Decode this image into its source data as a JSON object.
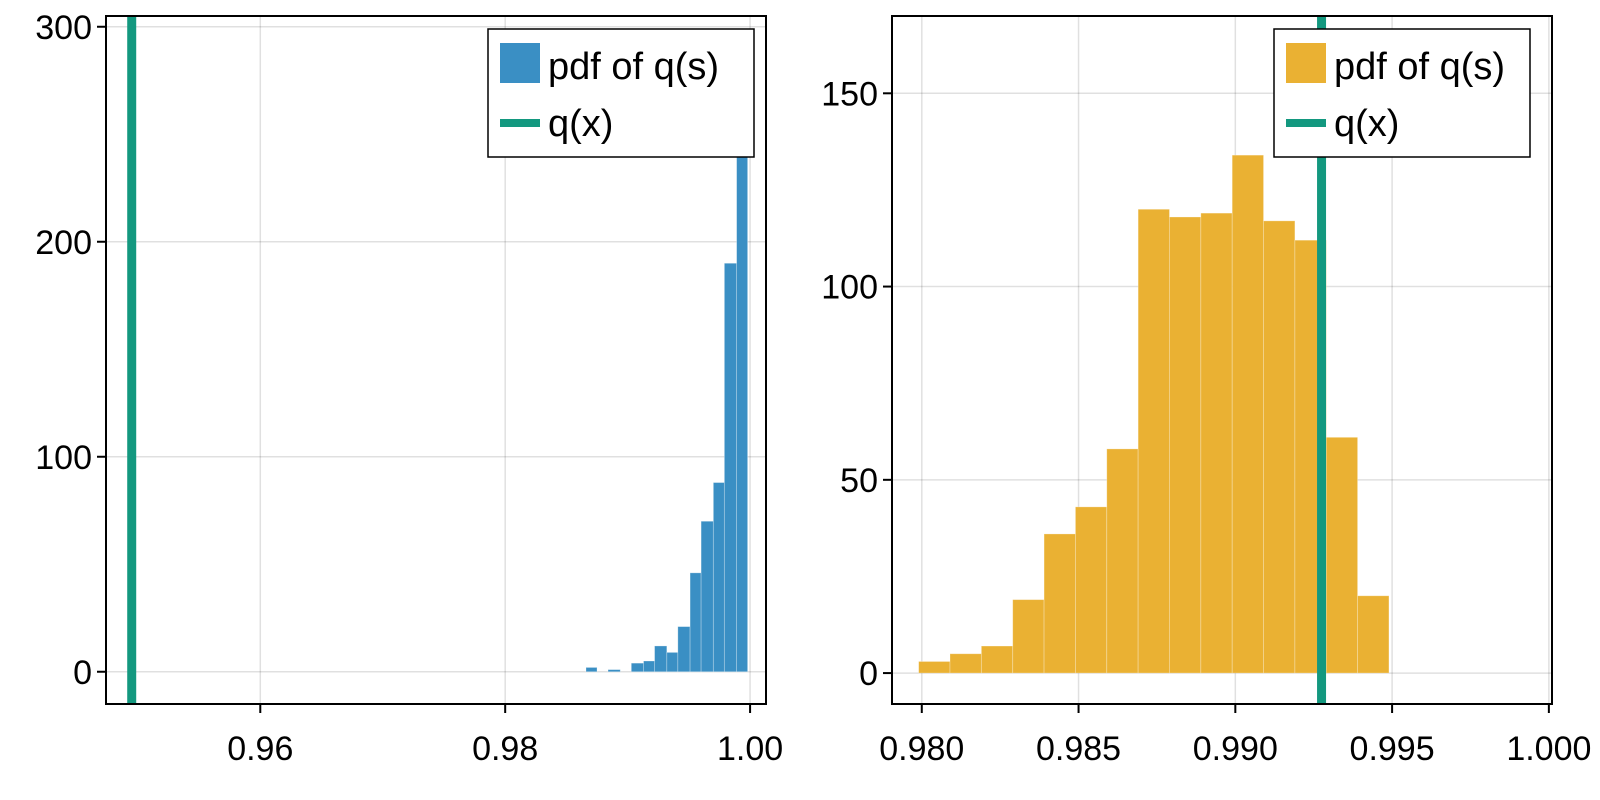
{
  "chart_data": [
    {
      "type": "bar",
      "title": "",
      "xlabel": "",
      "ylabel": "",
      "xlim": [
        0.9474,
        1.0013
      ],
      "ylim": [
        -15,
        305
      ],
      "xticks": [
        0.96,
        0.98,
        1.0
      ],
      "xtick_labels": [
        "0.96",
        "0.98",
        "1.00"
      ],
      "yticks": [
        0,
        100,
        200,
        300
      ],
      "ytick_labels": [
        "0",
        "100",
        "200",
        "300"
      ],
      "grid": true,
      "legend_position": "top-right",
      "bar_color": "#3a8fc4",
      "vline_color": "#13987f",
      "vline_x": 0.9495,
      "series": [
        {
          "name": "pdf of q(s)",
          "kind": "histogram",
          "bins": [
            {
              "x0": 0.9866,
              "x1": 0.9875,
              "y": 2
            },
            {
              "x0": 0.9884,
              "x1": 0.9894,
              "y": 1
            },
            {
              "x0": 0.9903,
              "x1": 0.9913,
              "y": 4
            },
            {
              "x0": 0.9913,
              "x1": 0.9922,
              "y": 5
            },
            {
              "x0": 0.9922,
              "x1": 0.9932,
              "y": 12
            },
            {
              "x0": 0.9932,
              "x1": 0.9941,
              "y": 9
            },
            {
              "x0": 0.9941,
              "x1": 0.9951,
              "y": 21
            },
            {
              "x0": 0.9951,
              "x1": 0.996,
              "y": 46
            },
            {
              "x0": 0.996,
              "x1": 0.997,
              "y": 70
            },
            {
              "x0": 0.997,
              "x1": 0.9979,
              "y": 88
            },
            {
              "x0": 0.9979,
              "x1": 0.9989,
              "y": 190
            },
            {
              "x0": 0.9989,
              "x1": 0.9998,
              "y": 240
            }
          ]
        },
        {
          "name": "q(x)",
          "kind": "vline",
          "x": 0.9495
        }
      ]
    },
    {
      "type": "bar",
      "title": "",
      "xlabel": "",
      "ylabel": "",
      "xlim": [
        0.97905,
        1.0001
      ],
      "ylim": [
        -8,
        170
      ],
      "xticks": [
        0.98,
        0.985,
        0.99,
        0.995,
        1.0
      ],
      "xtick_labels": [
        "0.980",
        "0.985",
        "0.990",
        "0.995",
        "1.000"
      ],
      "yticks": [
        0,
        50,
        100,
        150
      ],
      "ytick_labels": [
        "0",
        "50",
        "100",
        "150"
      ],
      "grid": true,
      "legend_position": "top-right",
      "bar_color": "#eab133",
      "vline_color": "#13987f",
      "vline_x": 0.99275,
      "series": [
        {
          "name": "pdf of q(s)",
          "kind": "histogram",
          "bins": [
            {
              "x0": 0.9799,
              "x1": 0.9809,
              "y": 3
            },
            {
              "x0": 0.9809,
              "x1": 0.9819,
              "y": 5
            },
            {
              "x0": 0.9819,
              "x1": 0.9829,
              "y": 7
            },
            {
              "x0": 0.9829,
              "x1": 0.9839,
              "y": 19
            },
            {
              "x0": 0.9839,
              "x1": 0.9849,
              "y": 36
            },
            {
              "x0": 0.9849,
              "x1": 0.9859,
              "y": 43
            },
            {
              "x0": 0.9859,
              "x1": 0.9869,
              "y": 58
            },
            {
              "x0": 0.9869,
              "x1": 0.9879,
              "y": 120
            },
            {
              "x0": 0.9879,
              "x1": 0.9889,
              "y": 118
            },
            {
              "x0": 0.9889,
              "x1": 0.9899,
              "y": 119
            },
            {
              "x0": 0.9899,
              "x1": 0.9909,
              "y": 134
            },
            {
              "x0": 0.9909,
              "x1": 0.9919,
              "y": 117
            },
            {
              "x0": 0.9919,
              "x1": 0.9929,
              "y": 112
            },
            {
              "x0": 0.9929,
              "x1": 0.9939,
              "y": 61
            },
            {
              "x0": 0.9939,
              "x1": 0.9949,
              "y": 20
            }
          ]
        },
        {
          "name": "q(x)",
          "kind": "vline",
          "x": 0.99275
        }
      ]
    }
  ]
}
